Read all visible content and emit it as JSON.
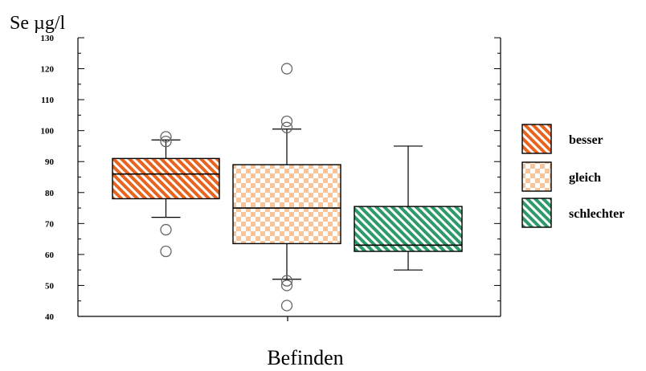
{
  "chart_data": {
    "type": "box",
    "title": "",
    "ylabel": "Se µg/l",
    "xlabel": "Befinden",
    "ylim": [
      40,
      130
    ],
    "yticks": [
      40,
      50,
      60,
      70,
      80,
      90,
      100,
      110,
      120,
      130
    ],
    "legend_position": "right",
    "grid": false,
    "series": [
      {
        "name": "besser",
        "color": "#E8641E",
        "pattern": "diagonal-stripes",
        "q1": 78,
        "median": 86,
        "q3": 91,
        "whisker_low": 72,
        "whisker_high": 97,
        "outliers": [
          98,
          96.5,
          68,
          61
        ]
      },
      {
        "name": "gleich",
        "color": "#F8C49A",
        "pattern": "checker",
        "q1": 63.5,
        "median": 75,
        "q3": 89,
        "whisker_low": 52,
        "whisker_high": 100.5,
        "outliers": [
          120,
          103,
          101,
          51.5,
          50,
          43.5
        ]
      },
      {
        "name": "schlechter",
        "color": "#2E9A6A",
        "pattern": "diagonal-stripes",
        "q1": 61,
        "median": 63,
        "q3": 75.5,
        "whisker_low": 55,
        "whisker_high": 95,
        "outliers": []
      }
    ]
  }
}
